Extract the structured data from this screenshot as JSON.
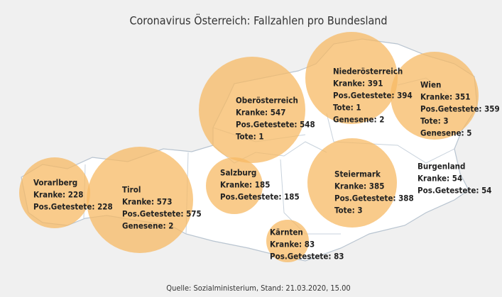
{
  "title": "Coronavirus Österreich: Fallzahlen pro Bundesland",
  "source": "Quelle: Sozialministerium, Stand: 21.03.2020, 15.00",
  "regions": [
    {
      "name": "Vorarlberg",
      "lines": [
        "Kranke: 228",
        "Pos.Getestete: 228"
      ]
    },
    {
      "name": "Tirol",
      "lines": [
        "Kranke: 573",
        "Pos.Getestete: 575",
        "Genesene: 2"
      ]
    },
    {
      "name": "Salzburg",
      "lines": [
        "Kranke: 185",
        "Pos.Getestete: 185"
      ]
    },
    {
      "name": "Oberösterreich",
      "lines": [
        "Kranke: 547",
        "Pos.Getestete: 548",
        "Tote: 1"
      ]
    },
    {
      "name": "Niederösterreich",
      "lines": [
        "Kranke: 391",
        "Pos.Getestete: 394",
        "Tote: 1",
        "Genesene: 2"
      ]
    },
    {
      "name": "Wien",
      "lines": [
        "Kranke: 351",
        "Pos.Getestete: 359",
        "Tote: 3",
        "Genesene: 5"
      ]
    },
    {
      "name": "Steiermark",
      "lines": [
        "Kranke: 385",
        "Pos.Getestete: 388",
        "Tote: 3"
      ]
    },
    {
      "name": "Kärnten",
      "lines": [
        "Kranke: 83",
        "Pos.Getestete: 83"
      ]
    },
    {
      "name": "Burgenland",
      "lines": [
        "Kranke: 54",
        "Pos.Getestete: 54"
      ]
    }
  ]
}
